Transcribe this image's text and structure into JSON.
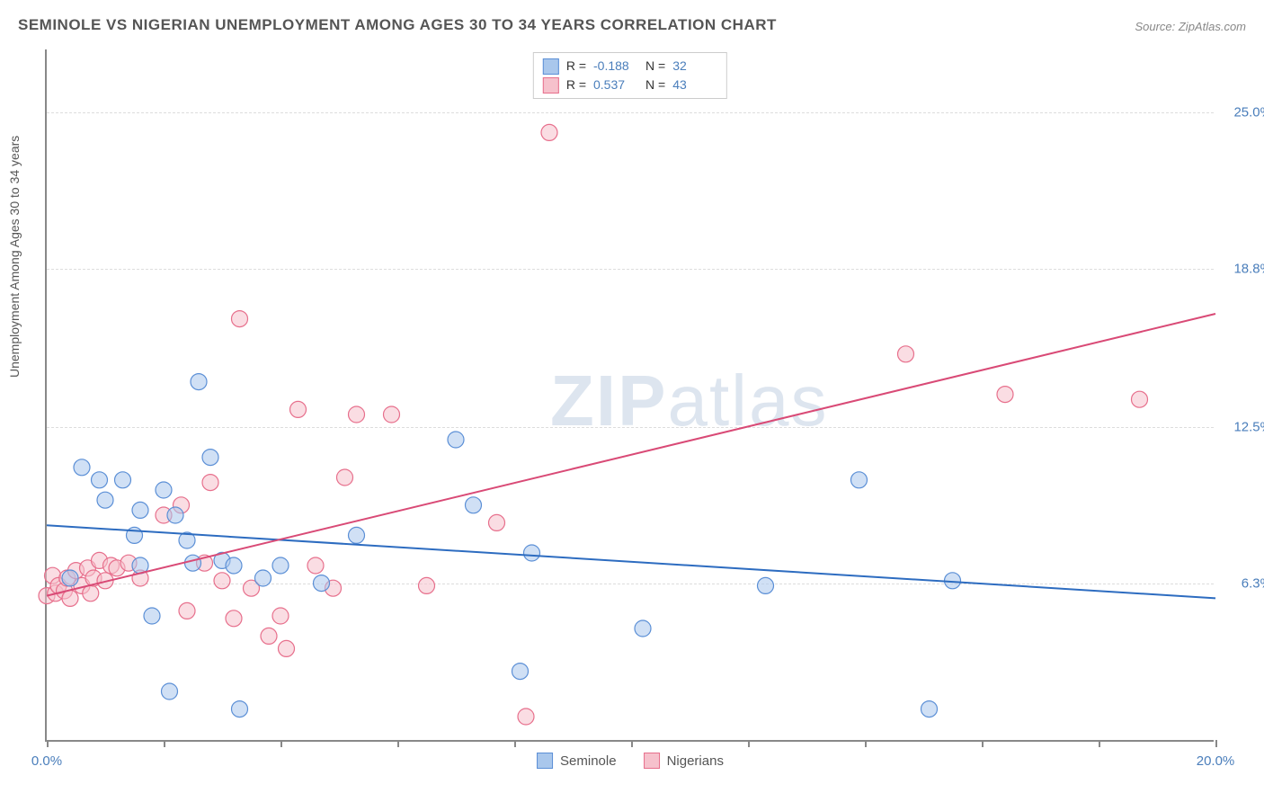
{
  "title": "SEMINOLE VS NIGERIAN UNEMPLOYMENT AMONG AGES 30 TO 34 YEARS CORRELATION CHART",
  "source": "Source: ZipAtlas.com",
  "y_axis_label": "Unemployment Among Ages 30 to 34 years",
  "watermark": {
    "bold": "ZIP",
    "light": "atlas"
  },
  "chart": {
    "type": "scatter-with-regression",
    "background_color": "#ffffff",
    "grid_color": "#dddddd",
    "axis_color": "#888888",
    "tick_label_color": "#4a7ebb",
    "xlim": [
      0,
      20
    ],
    "ylim": [
      0,
      27.5
    ],
    "x_ticks": [
      0,
      2,
      4,
      6,
      8,
      10,
      12,
      14,
      16,
      18,
      20
    ],
    "x_tick_labels": {
      "0": "0.0%",
      "20": "20.0%"
    },
    "y_gridlines": [
      6.3,
      12.5,
      18.8,
      25.0
    ],
    "y_tick_labels": [
      "6.3%",
      "12.5%",
      "18.8%",
      "25.0%"
    ],
    "marker_radius": 9,
    "marker_opacity": 0.55,
    "line_width": 2
  },
  "series": {
    "seminole": {
      "label": "Seminole",
      "color_fill": "#a9c7ec",
      "color_stroke": "#5b8fd6",
      "r_value": "-0.188",
      "n_value": "32",
      "regression": {
        "x1": 0,
        "y1": 8.6,
        "x2": 20,
        "y2": 5.7
      },
      "points": [
        [
          0.4,
          6.5
        ],
        [
          0.6,
          10.9
        ],
        [
          0.9,
          10.4
        ],
        [
          1.0,
          9.6
        ],
        [
          1.3,
          10.4
        ],
        [
          1.5,
          8.2
        ],
        [
          1.6,
          9.2
        ],
        [
          1.6,
          7.0
        ],
        [
          1.8,
          5.0
        ],
        [
          2.0,
          10.0
        ],
        [
          2.1,
          2.0
        ],
        [
          2.2,
          9.0
        ],
        [
          2.4,
          8.0
        ],
        [
          2.5,
          7.1
        ],
        [
          2.6,
          14.3
        ],
        [
          2.8,
          11.3
        ],
        [
          3.0,
          7.2
        ],
        [
          3.2,
          7.0
        ],
        [
          3.3,
          1.3
        ],
        [
          3.7,
          6.5
        ],
        [
          4.0,
          7.0
        ],
        [
          4.7,
          6.3
        ],
        [
          5.3,
          8.2
        ],
        [
          7.0,
          12.0
        ],
        [
          7.3,
          9.4
        ],
        [
          8.1,
          2.8
        ],
        [
          8.3,
          7.5
        ],
        [
          10.2,
          4.5
        ],
        [
          12.3,
          6.2
        ],
        [
          13.9,
          10.4
        ],
        [
          15.1,
          1.3
        ],
        [
          15.5,
          6.4
        ]
      ]
    },
    "nigerians": {
      "label": "Nigerians",
      "color_fill": "#f6c1cc",
      "color_stroke": "#e76f8c",
      "r_value": "0.537",
      "n_value": "43",
      "regression": {
        "x1": 0,
        "y1": 5.8,
        "x2": 20,
        "y2": 17.0
      },
      "points": [
        [
          0.0,
          5.8
        ],
        [
          0.1,
          6.6
        ],
        [
          0.15,
          5.9
        ],
        [
          0.2,
          6.2
        ],
        [
          0.3,
          6.0
        ],
        [
          0.35,
          6.5
        ],
        [
          0.4,
          5.7
        ],
        [
          0.5,
          6.8
        ],
        [
          0.6,
          6.2
        ],
        [
          0.7,
          6.9
        ],
        [
          0.75,
          5.9
        ],
        [
          0.8,
          6.5
        ],
        [
          0.9,
          7.2
        ],
        [
          1.0,
          6.4
        ],
        [
          1.1,
          7.0
        ],
        [
          1.2,
          6.9
        ],
        [
          1.4,
          7.1
        ],
        [
          1.6,
          6.5
        ],
        [
          2.0,
          9.0
        ],
        [
          2.3,
          9.4
        ],
        [
          2.4,
          5.2
        ],
        [
          2.7,
          7.1
        ],
        [
          2.8,
          10.3
        ],
        [
          3.0,
          6.4
        ],
        [
          3.2,
          4.9
        ],
        [
          3.3,
          16.8
        ],
        [
          3.5,
          6.1
        ],
        [
          3.8,
          4.2
        ],
        [
          4.0,
          5.0
        ],
        [
          4.1,
          3.7
        ],
        [
          4.3,
          13.2
        ],
        [
          4.6,
          7.0
        ],
        [
          4.9,
          6.1
        ],
        [
          5.1,
          10.5
        ],
        [
          5.3,
          13.0
        ],
        [
          5.9,
          13.0
        ],
        [
          6.5,
          6.2
        ],
        [
          7.7,
          8.7
        ],
        [
          8.2,
          1.0
        ],
        [
          8.6,
          24.2
        ],
        [
          14.7,
          15.4
        ],
        [
          16.4,
          13.8
        ],
        [
          18.7,
          13.6
        ]
      ]
    }
  },
  "legend_top": {
    "rows": [
      {
        "swatch_series": "seminole",
        "r_label": "R =",
        "n_label": "N ="
      },
      {
        "swatch_series": "nigerians",
        "r_label": "R =",
        "n_label": "N ="
      }
    ]
  }
}
